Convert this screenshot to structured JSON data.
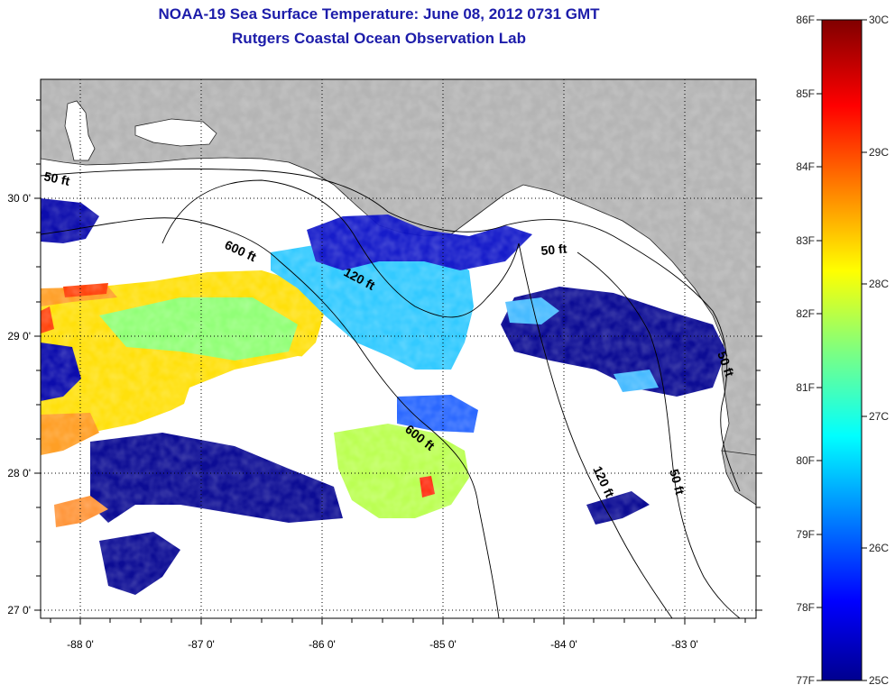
{
  "title": "NOAA-19 Sea Surface Temperature:  June 08, 2012 0731 GMT",
  "subtitle": "Rutgers Coastal Ocean Observation Lab",
  "map": {
    "lon_ticks": [
      "-88 0'",
      "-87 0'",
      "-86 0'",
      "-85 0'",
      "-84 0'",
      "-83 0'"
    ],
    "lat_ticks": [
      "30 0'",
      "29 0'",
      "28 0'",
      "27 0'"
    ],
    "contour_labels": [
      "50 ft",
      "600 ft",
      "120 ft",
      "50 ft",
      "600 ft",
      "120 ft",
      "50 ft",
      "50 ft"
    ],
    "land_color": "#b4b4b4",
    "nodata_color": "#ffffff"
  },
  "colorbar": {
    "f_labels": [
      "86F",
      "85F",
      "84F",
      "83F",
      "82F",
      "81F",
      "80F",
      "79F",
      "78F",
      "77F"
    ],
    "c_labels": [
      "30C",
      "29C",
      "28C",
      "27C",
      "26C",
      "25C"
    ],
    "min_c": 25,
    "max_c": 30,
    "colormap": "jet"
  }
}
